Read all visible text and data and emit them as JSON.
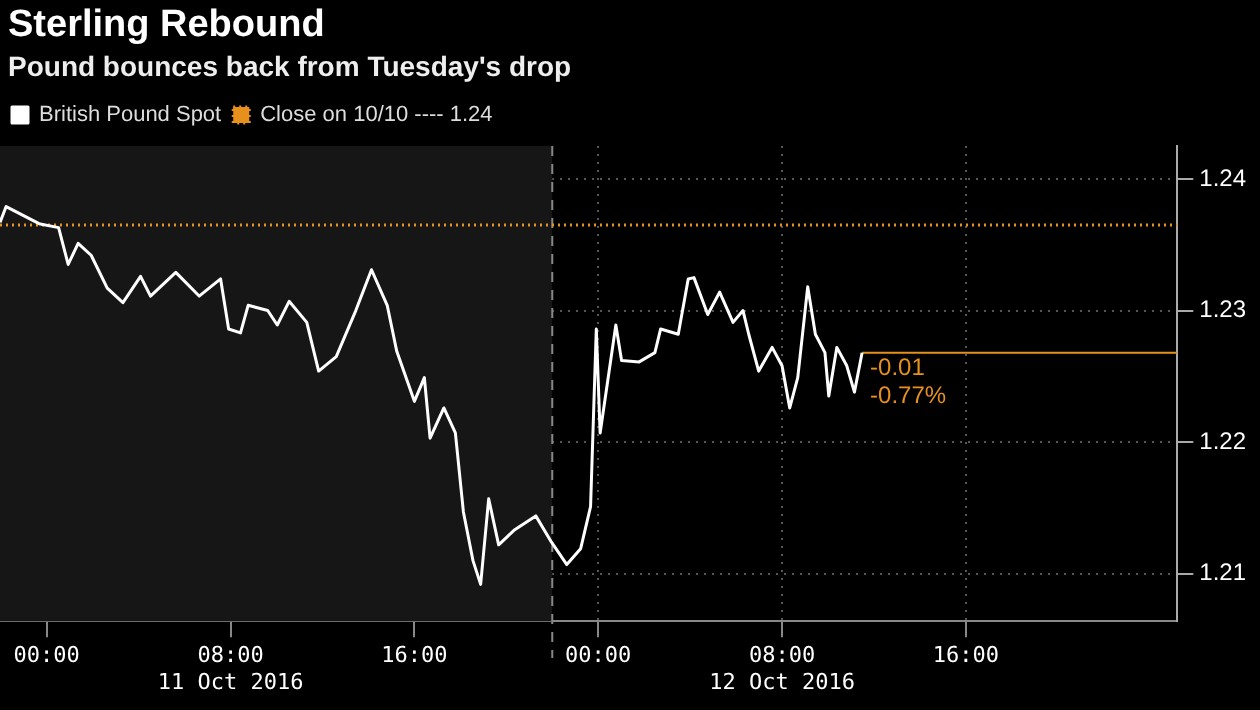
{
  "chart_data": {
    "type": "line",
    "title": "Sterling Rebound",
    "subtitle": "Pound bounces back from Tuesday's drop",
    "x": [
      "2016-10-10T21:58",
      "2016-10-10T22:14",
      "2016-10-10T23:40",
      "2016-10-11T00:31",
      "2016-10-11T00:56",
      "2016-10-11T01:22",
      "2016-10-11T01:56",
      "2016-10-11T02:38",
      "2016-10-11T03:19",
      "2016-10-11T04:05",
      "2016-10-11T04:31",
      "2016-10-11T05:37",
      "2016-10-11T06:38",
      "2016-10-11T07:34",
      "2016-10-11T07:55",
      "2016-10-11T08:26",
      "2016-10-11T08:46",
      "2016-10-11T09:37",
      "2016-10-11T10:02",
      "2016-10-11T10:33",
      "2016-10-11T11:19",
      "2016-10-11T11:50",
      "2016-10-11T12:36",
      "2016-10-11T13:27",
      "2016-10-11T14:08",
      "2016-10-11T14:49",
      "2016-10-11T15:14",
      "2016-10-11T16:00",
      "2016-10-11T16:26",
      "2016-10-11T16:41",
      "2016-10-11T17:17",
      "2016-10-11T17:47",
      "2016-10-11T18:08",
      "2016-10-11T18:33",
      "2016-10-11T18:53",
      "2016-10-11T19:14",
      "2016-10-11T19:40",
      "2016-10-11T20:20",
      "2016-10-11T21:17",
      "2016-10-11T21:58",
      "2016-10-11T22:38",
      "2016-10-11T23:14",
      "2016-10-11T23:40",
      "2016-10-11T23:55",
      "2016-10-12T00:05",
      "2016-10-12T00:46",
      "2016-10-12T01:01",
      "2016-10-12T01:47",
      "2016-10-12T02:28",
      "2016-10-12T02:43",
      "2016-10-12T03:29",
      "2016-10-12T03:55",
      "2016-10-12T04:10",
      "2016-10-12T04:46",
      "2016-10-12T05:17",
      "2016-10-12T05:52",
      "2016-10-12T06:18",
      "2016-10-12T06:33",
      "2016-10-12T06:59",
      "2016-10-12T07:34",
      "2016-10-12T08:00",
      "2016-10-12T08:20",
      "2016-10-12T08:41",
      "2016-10-12T09:07",
      "2016-10-12T09:27",
      "2016-10-12T09:52",
      "2016-10-12T10:02",
      "2016-10-12T10:23",
      "2016-10-12T10:49",
      "2016-10-12T11:09",
      "2016-10-12T11:29"
    ],
    "series": [
      {
        "name": "British Pound Spot",
        "color": "#ffffff",
        "line_style": "solid",
        "values": [
          1.2367,
          1.2379,
          1.2366,
          1.2363,
          1.2335,
          1.2351,
          1.2342,
          1.2317,
          1.2306,
          1.2326,
          1.2311,
          1.2329,
          1.2311,
          1.2324,
          1.2286,
          1.2283,
          1.2304,
          1.23,
          1.2289,
          1.2307,
          1.2291,
          1.2254,
          1.2265,
          1.23,
          1.2331,
          1.2304,
          1.2269,
          1.2231,
          1.2249,
          1.2203,
          1.2226,
          1.2207,
          1.2147,
          1.211,
          1.2092,
          1.2157,
          1.2122,
          1.2133,
          1.2144,
          1.2124,
          1.2107,
          1.2119,
          1.2151,
          1.2286,
          1.2207,
          1.2289,
          1.2262,
          1.2261,
          1.2268,
          1.2286,
          1.2282,
          1.2324,
          1.2325,
          1.2297,
          1.2314,
          1.2291,
          1.23,
          1.2282,
          1.2254,
          1.2272,
          1.2258,
          1.2226,
          1.2249,
          1.2318,
          1.2282,
          1.2268,
          1.2235,
          1.2272,
          1.2258,
          1.2238,
          1.2268
        ]
      },
      {
        "name": "Close on 10/10 ---- 1.24",
        "color": "#e8901c",
        "line_style": "dotted",
        "x": [
          "2016-10-10T21:58",
          "2016-10-13T01:12"
        ],
        "values": [
          1.2365,
          1.2365
        ]
      }
    ],
    "xlim": [
      "2016-10-10T21:58",
      "2016-10-13T01:12"
    ],
    "xticks": [
      {
        "value": "2016-10-11T00:00",
        "label": "00:00"
      },
      {
        "value": "2016-10-11T08:00",
        "label": "08:00\n11 Oct 2016"
      },
      {
        "value": "2016-10-11T16:00",
        "label": "16:00"
      },
      {
        "value": "2016-10-12T00:00",
        "label": "00:00"
      },
      {
        "value": "2016-10-12T08:00",
        "label": "08:00\n12 Oct 2016"
      },
      {
        "value": "2016-10-12T16:00",
        "label": "16:00"
      }
    ],
    "ylim": [
      1.2064,
      1.2425
    ],
    "yticks": [
      1.21,
      1.22,
      1.23,
      1.24
    ],
    "ref_lines": [
      {
        "axis": "x",
        "value": "2016-10-11T22:00",
        "color": "#888888",
        "line_style": "dashed"
      },
      {
        "axis": "y",
        "value": 1.2268,
        "color": "#e8901c",
        "line_style": "solid"
      }
    ],
    "bands": [
      {
        "axis": "x",
        "from": "2016-10-10T21:58",
        "to": "2016-10-11T22:00",
        "color": "#161616"
      }
    ],
    "annotations": [
      {
        "text": "-0.01",
        "x": "2016-10-12T11:29",
        "y": 1.2268
      },
      {
        "text": "-0.77%",
        "x": "2016-10-12T11:29",
        "y": 1.2268
      }
    ],
    "grid": true,
    "legend": "top left",
    "marker": "none"
  }
}
